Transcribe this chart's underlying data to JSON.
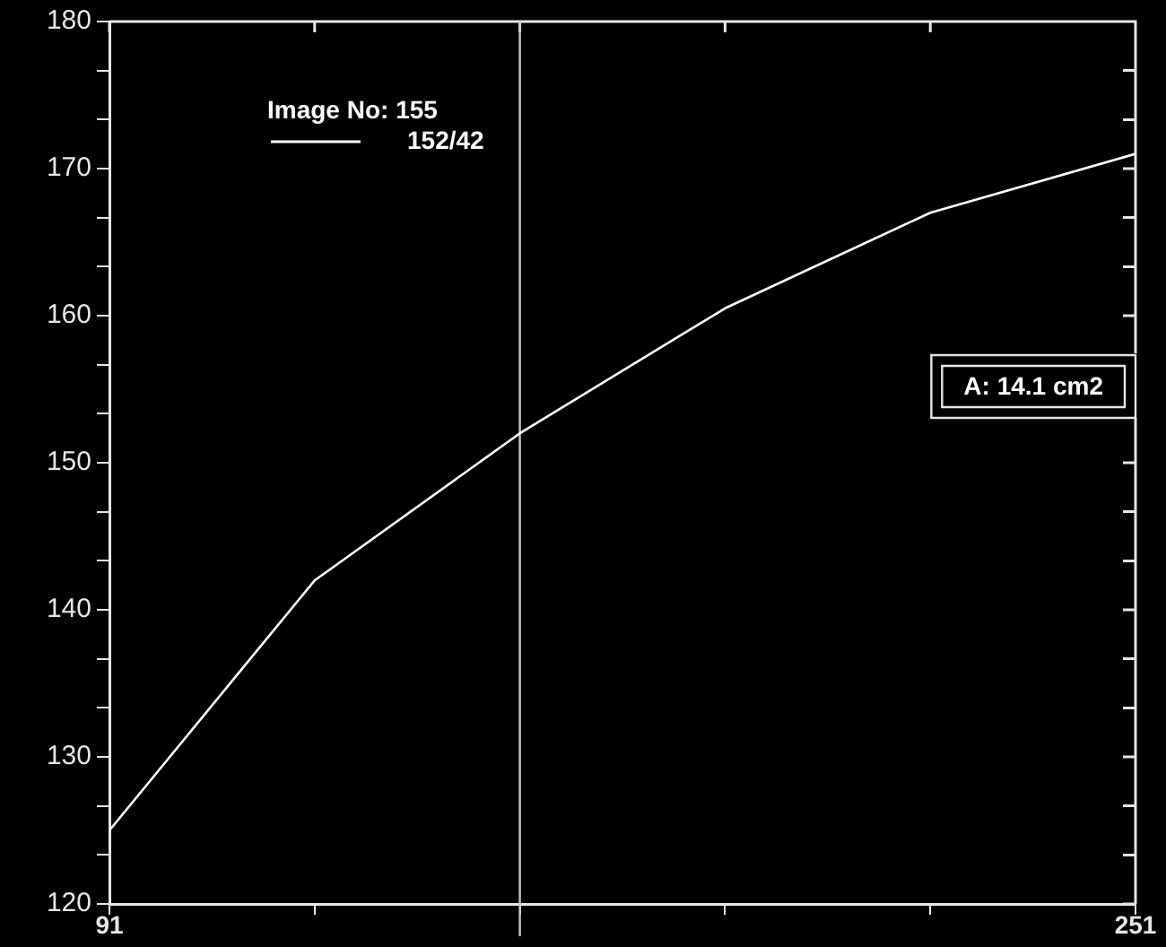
{
  "chart_data": {
    "type": "line",
    "x": [
      91,
      123,
      155,
      187,
      219,
      251
    ],
    "series": [
      {
        "name": "152/42",
        "color": "#ffffff",
        "values": [
          125,
          142,
          152,
          160.5,
          167,
          171
        ]
      }
    ],
    "legend_title": "Image No: 155",
    "legend": "top left",
    "xlim": [
      91,
      251
    ],
    "xticks": [
      91,
      {
        "value": 123,
        "label": null
      },
      {
        "value": 155,
        "label": null
      },
      {
        "value": 187,
        "label": null
      },
      {
        "value": 219,
        "label": null
      },
      251
    ],
    "ylim": [
      120,
      180
    ],
    "yticks": [
      120,
      {
        "value": 123.33,
        "label": null
      },
      {
        "value": 126.67,
        "label": null
      },
      130,
      {
        "value": 133.33,
        "label": null
      },
      {
        "value": 136.67,
        "label": null
      },
      140,
      {
        "value": 143.33,
        "label": null
      },
      {
        "value": 146.67,
        "label": null
      },
      150,
      {
        "value": 153.33,
        "label": null
      },
      {
        "value": 156.67,
        "label": null
      },
      160,
      {
        "value": 163.33,
        "label": null
      },
      {
        "value": 166.67,
        "label": null
      },
      170,
      {
        "value": 173.33,
        "label": null
      },
      {
        "value": 176.67,
        "label": null
      },
      180
    ],
    "ref_lines": [
      {
        "axis": "x",
        "value": 155,
        "color": "#c8c8c8"
      }
    ],
    "annotations": [
      "A: 14.1 cm2"
    ],
    "grid": false,
    "marker": "none",
    "line_style": "solid"
  }
}
